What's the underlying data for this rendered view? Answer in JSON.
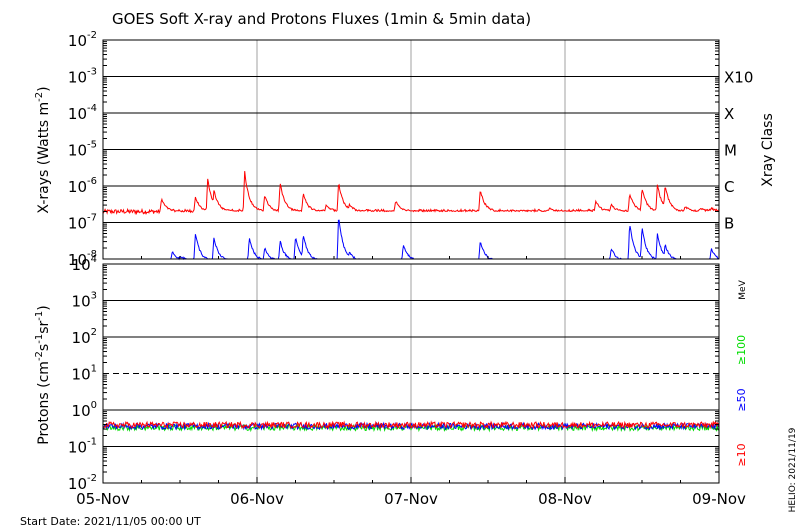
{
  "chart_data": {
    "type": "line",
    "title": "GOES Soft X-ray and Protons Fluxes   (1min & 5min data)",
    "start_date_label": "Start Date: 2021/11/05 00:00 UT",
    "helio_label": "HELIO: 2021/11/19",
    "x_tick_labels": [
      "05-Nov",
      "06-Nov",
      "07-Nov",
      "08-Nov",
      "09-Nov"
    ],
    "x_range_days": [
      0,
      4
    ],
    "xray_panel": {
      "ylabel_main": "X-rays (Watts m",
      "ylabel_exp": "-2",
      "ylabel_close": ")",
      "log_scale": true,
      "ylim_exp": [
        -8,
        -2
      ],
      "ytick_exps": [
        "-2",
        "-3",
        "-4",
        "-5",
        "-6",
        "-7",
        "-8"
      ],
      "class_axis_label": "Xray Class",
      "class_labels": [
        {
          "label": "X10",
          "exp": -3
        },
        {
          "label": "X",
          "exp": -4
        },
        {
          "label": "M",
          "exp": -5
        },
        {
          "label": "C",
          "exp": -6
        },
        {
          "label": "B",
          "exp": -7
        }
      ],
      "series": [
        {
          "color": "#ff0000",
          "base_log": -6.7,
          "peaks": [
            [
              0.38,
              -6.35
            ],
            [
              0.6,
              -6.3
            ],
            [
              0.68,
              -5.8
            ],
            [
              0.72,
              -6.1
            ],
            [
              0.92,
              -5.6
            ],
            [
              1.05,
              -6.25
            ],
            [
              1.15,
              -5.9
            ],
            [
              1.3,
              -6.2
            ],
            [
              1.45,
              -6.5
            ],
            [
              1.53,
              -5.9
            ],
            [
              1.6,
              -6.5
            ],
            [
              1.9,
              -6.4
            ],
            [
              2.45,
              -6.1
            ],
            [
              2.9,
              -6.6
            ],
            [
              3.2,
              -6.4
            ],
            [
              3.3,
              -6.5
            ],
            [
              3.42,
              -6.2
            ],
            [
              3.5,
              -6.05
            ],
            [
              3.6,
              -5.95
            ],
            [
              3.65,
              -5.98
            ],
            [
              3.78,
              -6.55
            ],
            [
              3.88,
              -6.6
            ],
            [
              3.95,
              -6.6
            ]
          ]
        },
        {
          "color": "#0000ff",
          "base_log": -8.05,
          "peaks": [
            [
              0.05,
              -8.2
            ],
            [
              0.45,
              -7.8
            ],
            [
              0.5,
              -7.9
            ],
            [
              0.6,
              -7.3
            ],
            [
              0.72,
              -7.4
            ],
            [
              0.95,
              -7.4
            ],
            [
              1.05,
              -7.7
            ],
            [
              1.15,
              -7.5
            ],
            [
              1.25,
              -7.4
            ],
            [
              1.3,
              -7.3
            ],
            [
              1.53,
              -6.8
            ],
            [
              1.6,
              -7.8
            ],
            [
              1.95,
              -7.6
            ],
            [
              2.45,
              -7.5
            ],
            [
              3.05,
              -8.1
            ],
            [
              3.3,
              -7.7
            ],
            [
              3.42,
              -7.0
            ],
            [
              3.5,
              -7.1
            ],
            [
              3.6,
              -7.3
            ],
            [
              3.65,
              -7.6
            ],
            [
              3.95,
              -7.7
            ]
          ]
        }
      ]
    },
    "proton_panel": {
      "ylabel_main": "Protons (cm",
      "ylabel_parts": [
        "-2",
        "s",
        "-1",
        "sr",
        "-1"
      ],
      "log_scale": true,
      "ylim_exp": [
        -2,
        4
      ],
      "ytick_exps": [
        "4",
        "3",
        "2",
        "1",
        "0",
        "-1",
        "-2"
      ],
      "threshold_exp": 1,
      "mev_label": "MeV",
      "channel_labels": [
        {
          "label": "≥100",
          "color": "#00dd00"
        },
        {
          "label": "≥50",
          "color": "#0000ff"
        },
        {
          "label": "≥10",
          "color": "#ff0000"
        }
      ],
      "series": [
        {
          "color": "#00dd00",
          "base": 0.33
        },
        {
          "color": "#0000ff",
          "base": 0.36
        },
        {
          "color": "#ff0000",
          "base": 0.39
        }
      ]
    }
  }
}
